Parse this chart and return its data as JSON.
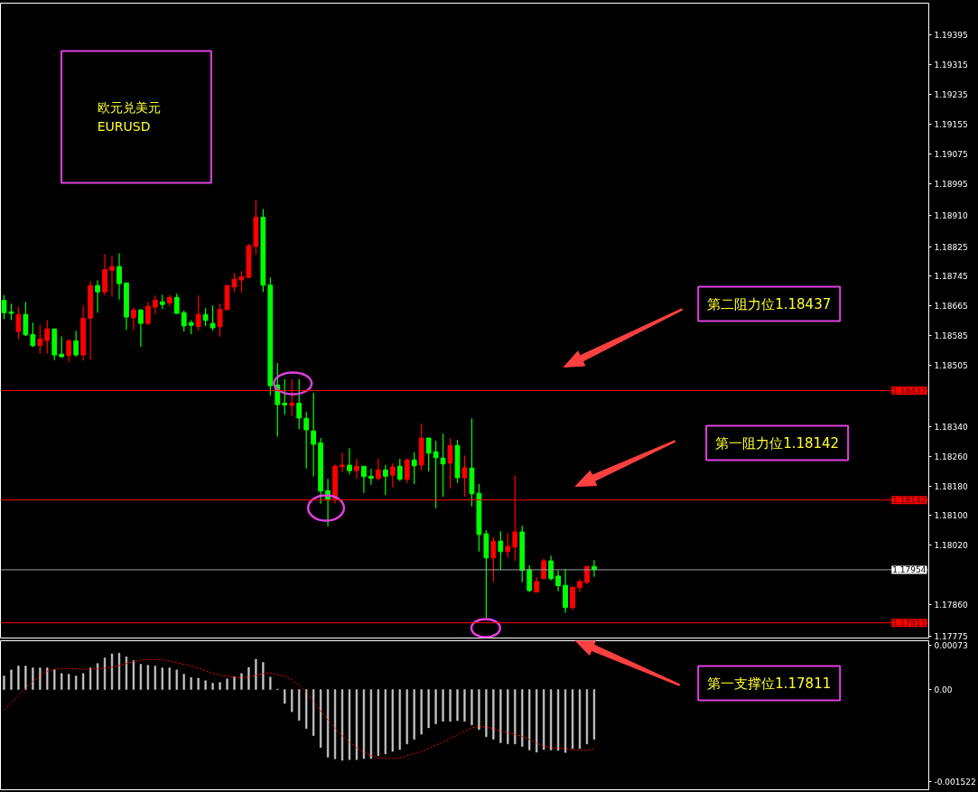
{
  "chart_data": [
    {
      "type": "candlestick",
      "categories": [
        null,
        null,
        null,
        null,
        null,
        null,
        null,
        null,
        null,
        null,
        null,
        null,
        null,
        null,
        null,
        null,
        null,
        null,
        null,
        null,
        null,
        null,
        null,
        null,
        null,
        null,
        null,
        null,
        null,
        null,
        null,
        null,
        null,
        null,
        null,
        null,
        null,
        null,
        null,
        null,
        null,
        null,
        null,
        null,
        null,
        null,
        null,
        null,
        null,
        null,
        null,
        null,
        null,
        null,
        null,
        null,
        null,
        null,
        null,
        null,
        null,
        null,
        null,
        null,
        null,
        null,
        null,
        null,
        null,
        null,
        null,
        null,
        null,
        null,
        null,
        null,
        null,
        null,
        null,
        null,
        null,
        null,
        null,
        null,
        null,
        null,
        null,
        null,
        null,
        null,
        null,
        null,
        null,
        null,
        null,
        null,
        null,
        null,
        null,
        null,
        null,
        null,
        null,
        null,
        null,
        null,
        null,
        null,
        null,
        null,
        null,
        null,
        null,
        null,
        null,
        null,
        null,
        null,
        null,
        null,
        null,
        null,
        null,
        null,
        null,
        null,
        null,
        null,
        null
      ],
      "ohlc": [
        [
          1.1868,
          1.18694,
          1.18629,
          1.18647
        ],
        [
          1.18649,
          1.18671,
          1.18627,
          1.18645
        ],
        [
          1.18596,
          1.18663,
          1.18575,
          1.18642
        ],
        [
          1.18642,
          1.18676,
          1.18584,
          1.18587
        ],
        [
          1.18588,
          1.1862,
          1.18554,
          1.18558
        ],
        [
          1.18558,
          1.18613,
          1.18536,
          1.18576
        ],
        [
          1.18572,
          1.18627,
          1.18537,
          1.18603
        ],
        [
          1.18603,
          1.18603,
          1.18519,
          1.18533
        ],
        [
          1.18535,
          1.18583,
          1.18527,
          1.18528
        ],
        [
          1.18531,
          1.18576,
          1.18514,
          1.18571
        ],
        [
          1.18571,
          1.18598,
          1.18528,
          1.18533
        ],
        [
          1.18533,
          1.18666,
          1.18518,
          1.18632
        ],
        [
          1.18632,
          1.18732,
          1.18521,
          1.1872
        ],
        [
          1.1872,
          1.18734,
          1.18647,
          1.18703
        ],
        [
          1.18703,
          1.18805,
          1.18693,
          1.18763
        ],
        [
          1.18761,
          1.188,
          1.1869,
          1.18771
        ],
        [
          1.18771,
          1.18807,
          1.18682,
          1.18725
        ],
        [
          1.18727,
          1.18727,
          1.186,
          1.18635
        ],
        [
          1.18633,
          1.18661,
          1.186,
          1.18654
        ],
        [
          1.18654,
          1.18656,
          1.18555,
          1.18618
        ],
        [
          1.18618,
          1.18676,
          1.18613,
          1.18664
        ],
        [
          1.18662,
          1.18693,
          1.18643,
          1.18681
        ],
        [
          1.18676,
          1.18695,
          1.18657,
          1.18669
        ],
        [
          1.18673,
          1.18695,
          1.18664,
          1.18688
        ],
        [
          1.18688,
          1.18698,
          1.18643,
          1.18645
        ],
        [
          1.18647,
          1.18652,
          1.18596,
          1.18611
        ],
        [
          1.1862,
          1.18627,
          1.18589,
          1.18613
        ],
        [
          1.1861,
          1.18693,
          1.18599,
          1.18642
        ],
        [
          1.18642,
          1.18659,
          1.18611,
          1.18626
        ],
        [
          1.18618,
          1.18666,
          1.18599,
          1.18606
        ],
        [
          1.18609,
          1.18671,
          1.18582,
          1.18656
        ],
        [
          1.18655,
          1.18722,
          1.18655,
          1.1872
        ],
        [
          1.18716,
          1.18754,
          1.18703,
          1.18737
        ],
        [
          1.18735,
          1.18759,
          1.18701,
          1.18744
        ],
        [
          1.18742,
          1.18832,
          1.1874,
          1.18827
        ],
        [
          1.18825,
          1.18951,
          1.18803,
          1.18904
        ],
        [
          1.18904,
          1.18926,
          1.18703,
          1.18721
        ],
        [
          1.18721,
          1.18742,
          1.18424,
          1.1845
        ],
        [
          1.18452,
          1.18511,
          1.18313,
          1.18399
        ],
        [
          1.18403,
          1.18467,
          1.18372,
          1.18398
        ],
        [
          1.18397,
          1.18467,
          1.18369,
          1.18403
        ],
        [
          1.18403,
          1.18467,
          1.18333,
          1.18363
        ],
        [
          1.18362,
          1.18379,
          1.18227,
          1.18331
        ],
        [
          1.18328,
          1.1843,
          1.18205,
          1.18292
        ],
        [
          1.18296,
          1.18309,
          1.18132,
          1.18166
        ],
        [
          1.18167,
          1.18199,
          1.18071,
          1.18144
        ],
        [
          1.18146,
          1.18238,
          1.18132,
          1.18233
        ],
        [
          1.18232,
          1.1827,
          1.18217,
          1.18236
        ],
        [
          1.18236,
          1.18282,
          1.18211,
          1.18221
        ],
        [
          1.18221,
          1.18253,
          1.18199,
          1.18233
        ],
        [
          1.18233,
          1.18233,
          1.18161,
          1.18205
        ],
        [
          1.18206,
          1.18226,
          1.18183,
          1.182
        ],
        [
          1.182,
          1.18253,
          1.18195,
          1.18223
        ],
        [
          1.18223,
          1.18236,
          1.18156,
          1.18206
        ],
        [
          1.18209,
          1.18241,
          1.18176,
          1.18231
        ],
        [
          1.18233,
          1.18253,
          1.18193,
          1.18198
        ],
        [
          1.18198,
          1.18253,
          1.18188,
          1.1825
        ],
        [
          1.1825,
          1.1827,
          1.18185,
          1.18234
        ],
        [
          1.18236,
          1.18348,
          1.18222,
          1.18309
        ],
        [
          1.18309,
          1.18309,
          1.18219,
          1.18268
        ],
        [
          1.18272,
          1.18301,
          1.1812,
          1.18256
        ],
        [
          1.18255,
          1.18321,
          1.18151,
          1.18239
        ],
        [
          1.18241,
          1.18309,
          1.18173,
          1.18289
        ],
        [
          1.18289,
          1.18304,
          1.18188,
          1.18202
        ],
        [
          1.18202,
          1.18262,
          1.18151,
          1.18229
        ],
        [
          1.18228,
          1.18362,
          1.18125,
          1.18159
        ],
        [
          1.1816,
          1.18185,
          1.18003,
          1.18049
        ],
        [
          1.18051,
          1.18061,
          1.17825,
          1.17986
        ],
        [
          1.17986,
          1.18041,
          1.1792,
          1.18031
        ],
        [
          1.18031,
          1.18058,
          1.17954,
          1.18003
        ],
        [
          1.18003,
          1.18053,
          1.17986,
          1.18017
        ],
        [
          1.18015,
          1.18209,
          1.17979,
          1.18056
        ],
        [
          1.18056,
          1.18073,
          1.1792,
          1.17952
        ],
        [
          1.17954,
          1.17966,
          1.17894,
          1.17898
        ],
        [
          1.17894,
          1.17934,
          1.17894,
          1.17922
        ],
        [
          1.1793,
          1.17985,
          1.1793,
          1.17978
        ],
        [
          1.17978,
          1.17992,
          1.17925,
          1.1793
        ],
        [
          1.17937,
          1.17952,
          1.17896,
          1.17911
        ],
        [
          1.17912,
          1.17956,
          1.17838,
          1.17852
        ],
        [
          1.17852,
          1.17908,
          1.17845,
          1.17907
        ],
        [
          1.17906,
          1.17929,
          1.17894,
          1.17922
        ],
        [
          1.1792,
          1.17964,
          1.17915,
          1.17963
        ],
        [
          1.17963,
          1.1798,
          1.17935,
          1.17954
        ],
        null,
        null,
        null,
        null,
        null,
        null,
        null,
        null,
        null,
        null,
        null,
        null,
        null,
        null,
        null,
        null,
        null,
        null,
        null,
        null,
        null,
        null,
        null,
        null,
        null,
        null,
        null,
        null,
        null,
        null,
        null,
        null,
        null,
        null,
        null,
        null,
        null,
        null,
        null,
        null,
        null,
        null,
        null,
        null,
        null,
        null
      ],
      "colors": [
        "#00ff00",
        "#00ff00",
        "#ff0000",
        "#00ff00",
        "#00ff00",
        "#ff0000",
        "#ff0000",
        "#00ff00",
        "#00ff00",
        "#ff0000",
        "#00ff00",
        "#ff0000",
        "#ff0000",
        "#00ff00",
        "#ff0000",
        "#ff0000",
        "#00ff00",
        "#00ff00",
        "#ff0000",
        "#00ff00",
        "#ff0000",
        "#ff0000",
        "#00ff00",
        "#ff0000",
        "#00ff00",
        "#00ff00",
        "#00ff00",
        "#ff0000",
        "#00ff00",
        "#00ff00",
        "#ff0000",
        "#ff0000",
        "#ff0000",
        "#ff0000",
        "#ff0000",
        "#ff0000",
        "#00ff00",
        "#00ff00",
        "#00ff00",
        "#00ff00",
        "#ff0000",
        "#00ff00",
        "#00ff00",
        "#00ff00",
        "#00ff00",
        "#00ff00",
        "#ff0000",
        "#ff0000",
        "#00ff00",
        "#ff0000",
        "#00ff00",
        "#00ff00",
        "#ff0000",
        "#00ff00",
        "#ff0000",
        "#00ff00",
        "#ff0000",
        "#00ff00",
        "#ff0000",
        "#00ff00",
        "#00ff00",
        "#00ff00",
        "#ff0000",
        "#00ff00",
        "#ff0000",
        "#00ff00",
        "#00ff00",
        "#00ff00",
        "#ff0000",
        "#00ff00",
        "#ff0000",
        "#ff0000",
        "#00ff00",
        "#00ff00",
        "#ff0000",
        "#ff0000",
        "#00ff00",
        "#00ff00",
        "#00ff00",
        "#ff0000",
        "#ff0000",
        "#ff0000",
        "#00ff00",
        null,
        null,
        null,
        null,
        null,
        null,
        null,
        null,
        null,
        null,
        null,
        null,
        null,
        null,
        null,
        null,
        null,
        null,
        null,
        null,
        null,
        null,
        null,
        null,
        null,
        null,
        null,
        null,
        null,
        null,
        null,
        null,
        null,
        null,
        null,
        null,
        null,
        null,
        null,
        null,
        null,
        null,
        null,
        null,
        null,
        null
      ],
      "ylim": [
        1.1777,
        1.19481
      ],
      "yticks": [
        1.19395,
        1.19315,
        1.19235,
        1.19155,
        1.19075,
        1.18995,
        {
          "value": 1.1891,
          "label": "1.18910"
        },
        1.18825,
        1.18745,
        1.18665,
        1.18585,
        1.18505,
        {
          "value": 1.1834,
          "label": "1.18340"
        },
        {
          "value": 1.1826,
          "label": "1.18260"
        },
        {
          "value": 1.1818,
          "label": "1.18180"
        },
        {
          "value": 1.181,
          "label": "1.18100"
        },
        {
          "value": 1.1802,
          "label": "1.18020"
        },
        {
          "value": 1.1786,
          "label": "1.17860"
        },
        1.17775
      ],
      "ref_lines": [
        {
          "axis": "y",
          "value": 1.18437,
          "label": "1.18437",
          "color": "#ff0000"
        },
        {
          "axis": "y",
          "value": 1.18142,
          "label": "1.18142",
          "color": "#ff0000"
        },
        {
          "axis": "y",
          "value": 1.17954,
          "label": "1.17954",
          "color": "#9aa0a6"
        },
        {
          "axis": "y",
          "value": 1.17811,
          "label": "1.17811",
          "color": "#ff0000"
        }
      ],
      "annotations": [
        "欧元兑美元",
        "EURUSD",
        "第二阻力位1.18437",
        "第一阻力位1.18142"
      ],
      "tick_labels": "y"
    },
    {
      "type": "bar",
      "categories": [
        null,
        null,
        null,
        null,
        null,
        null,
        null,
        null,
        null,
        null,
        null,
        null,
        null,
        null,
        null,
        null,
        null,
        null,
        null,
        null,
        null,
        null,
        null,
        null,
        null,
        null,
        null,
        null,
        null,
        null,
        null,
        null,
        null,
        null,
        null,
        null,
        null,
        null,
        null,
        null,
        null,
        null,
        null,
        null,
        null,
        null,
        null,
        null,
        null,
        null,
        null,
        null,
        null,
        null,
        null,
        null,
        null,
        null,
        null,
        null,
        null,
        null,
        null,
        null,
        null,
        null,
        null,
        null,
        null,
        null,
        null,
        null,
        null,
        null,
        null,
        null,
        null,
        null,
        null,
        null,
        null,
        null,
        null,
        null,
        null,
        null,
        null,
        null,
        null,
        null,
        null,
        null,
        null,
        null,
        null,
        null,
        null,
        null,
        null,
        null,
        null,
        null,
        null,
        null,
        null,
        null,
        null,
        null,
        null,
        null,
        null,
        null,
        null,
        null,
        null,
        null,
        null,
        null,
        null,
        null,
        null,
        null,
        null,
        null,
        null,
        null,
        null,
        null,
        null
      ],
      "series": [
        {
          "type": "bar",
          "color": "#c8c8c8",
          "values": [
            0.000225,
            0.000326,
            0.000391,
            0.000391,
            0.000361,
            0.000361,
            0.000361,
            0.000332,
            0.000267,
            0.000255,
            0.000225,
            0.000267,
            0.000361,
            0.000433,
            0.000527,
            0.000593,
            0.000604,
            0.000545,
            0.000486,
            0.000421,
            0.000403,
            0.000391,
            0.000361,
            0.000361,
            0.000326,
            0.000255,
            0.000201,
            0.00019,
            0.000148,
            0.000107,
            0.000119,
            0.000178,
            0.000213,
            0.000267,
            0.000367,
            0.000504,
            0.00045,
            0.000207,
            1e-05,
            -0.000231,
            -0.000367,
            -0.00051,
            -0.000646,
            -0.000764,
            -0.00096,
            -0.00112,
            -0.001149,
            -0.001173,
            -0.001161,
            -0.001161,
            -0.001144,
            -0.001144,
            -0.001096,
            -0.001067,
            -0.001025,
            -0.000995,
            -0.000901,
            -0.000824,
            -0.000741,
            -0.000634,
            -0.000569,
            -0.000527,
            -0.000527,
            -0.000515,
            -0.000527,
            -0.000587,
            -0.000664,
            -0.000782,
            -0.000824,
            -0.000883,
            -0.000901,
            -0.000901,
            -0.000942,
            -0.001001,
            -0.001037,
            -0.000995,
            -0.001001,
            -0.001007,
            -0.001043,
            -0.000978,
            -0.000978,
            -0.000901,
            -0.000824,
            null,
            null,
            null,
            null,
            null,
            null,
            null,
            null,
            null,
            null,
            null,
            null,
            null,
            null,
            null,
            null,
            null,
            null,
            null,
            null,
            null,
            null,
            null,
            null,
            null,
            null,
            null,
            null,
            null,
            null,
            null,
            null,
            null,
            null,
            null,
            null,
            null,
            null,
            null,
            null,
            null,
            null,
            null,
            null,
            null,
            null
          ]
        },
        {
          "type": "line",
          "color": "#ff0000",
          "line_style": "dashed",
          "values": [
            -0.000338,
            -0.000219,
            -0.000101,
            3e-05,
            0.000136,
            0.000225,
            0.000302,
            0.000338,
            0.00035,
            0.00035,
            0.000344,
            0.000332,
            0.000338,
            0.00035,
            0.000356,
            0.000373,
            0.000397,
            0.000433,
            0.000468,
            0.000486,
            0.000498,
            0.000498,
            0.000498,
            0.000474,
            0.000444,
            0.000421,
            0.000391,
            0.000356,
            0.000314,
            0.000267,
            0.000243,
            0.000225,
            0.000207,
            0.000201,
            0.000207,
            0.000237,
            0.000267,
            0.000278,
            0.000249,
            0.000225,
            0.00016,
            7.7e-05,
            -4.1e-05,
            -0.00019,
            -0.00035,
            -0.000504,
            -0.000646,
            -0.000764,
            -0.000871,
            -0.000966,
            -0.001037,
            -0.001096,
            -0.001132,
            -0.001144,
            -0.001144,
            -0.001132,
            -0.001096,
            -0.001061,
            -0.001025,
            -0.000978,
            -0.000924,
            -0.000871,
            -0.000812,
            -0.000752,
            -0.000693,
            -0.000634,
            -0.00061,
            -0.000622,
            -0.000646,
            -0.000681,
            -0.000711,
            -0.000741,
            -0.000776,
            -0.000824,
            -0.000889,
            -0.000936,
            -0.000966,
            -0.000972,
            -0.000978,
            -0.000995,
            -0.001007,
            -0.001007,
            -0.000978,
            null,
            null,
            null,
            null,
            null,
            null,
            null,
            null,
            null,
            null,
            null,
            null,
            null,
            null,
            null,
            null,
            null,
            null,
            null,
            null,
            null,
            null,
            null,
            null,
            null,
            null,
            null,
            null,
            null,
            null,
            null,
            null,
            null,
            null,
            null,
            null,
            null,
            null,
            null,
            null,
            null,
            null,
            null,
            null,
            null,
            null
          ]
        }
      ],
      "ylim": [
        -0.00166,
        0.00081
      ],
      "yticks": [
        0.00073,
        {
          "value": 0,
          "label": "0.00"
        },
        -0.001522
      ],
      "annotations": [
        "第一支撑位1.17811"
      ],
      "tick_labels": "y"
    }
  ]
}
